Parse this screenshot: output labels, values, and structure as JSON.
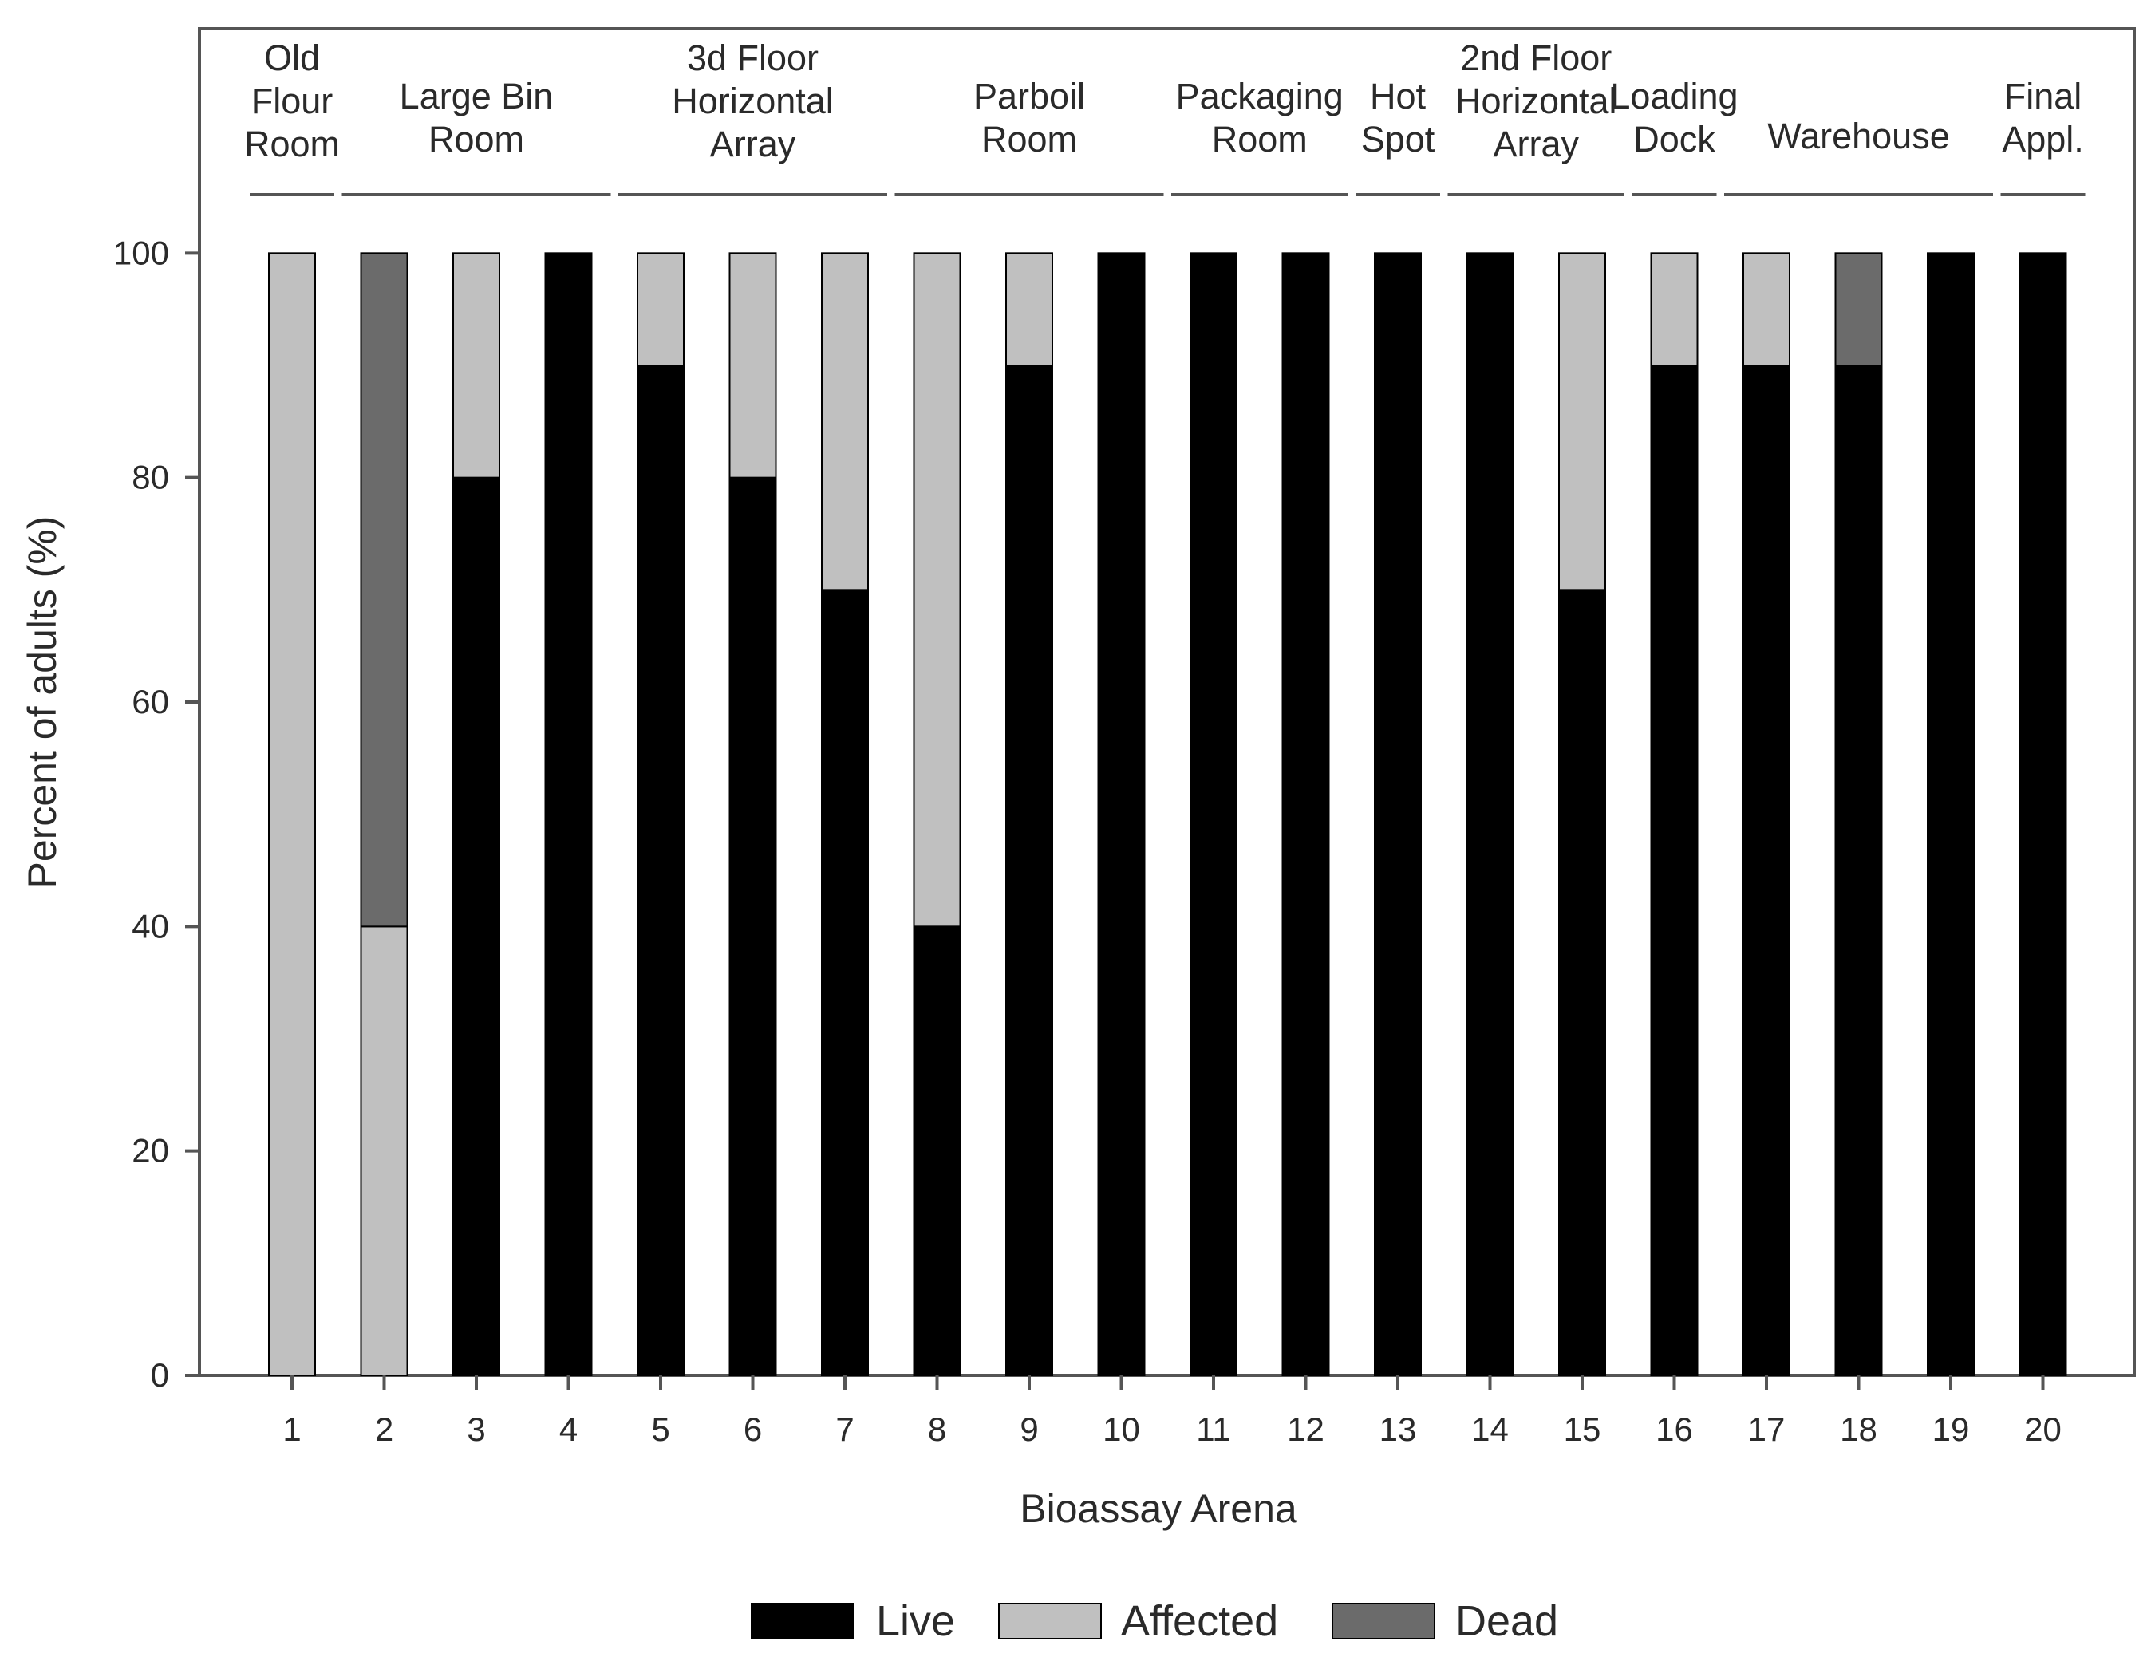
{
  "chart_data": {
    "type": "bar",
    "stacked": true,
    "xlabel": "Bioassay Arena",
    "ylabel": "Percent of adults (%)",
    "ylim": [
      0,
      120
    ],
    "yticks": [
      0,
      20,
      40,
      60,
      80,
      100
    ],
    "grid": false,
    "legend_position": "bottom",
    "categories": [
      "1",
      "2",
      "3",
      "4",
      "5",
      "6",
      "7",
      "8",
      "9",
      "10",
      "11",
      "12",
      "13",
      "14",
      "15",
      "16",
      "17",
      "18",
      "19",
      "20"
    ],
    "series": [
      {
        "name": "Live",
        "color": "#000000",
        "values": [
          0,
          0,
          80,
          100,
          90,
          80,
          70,
          40,
          90,
          100,
          100,
          100,
          100,
          100,
          70,
          90,
          90,
          90,
          100,
          100
        ]
      },
      {
        "name": "Affected",
        "color": "#c0c0c0",
        "values": [
          100,
          40,
          20,
          0,
          10,
          20,
          30,
          60,
          10,
          0,
          0,
          0,
          0,
          0,
          30,
          10,
          10,
          0,
          0,
          0
        ]
      },
      {
        "name": "Dead",
        "color": "#6b6b6b",
        "values": [
          0,
          60,
          0,
          0,
          0,
          0,
          0,
          0,
          0,
          0,
          0,
          0,
          0,
          0,
          0,
          0,
          0,
          10,
          0,
          0
        ]
      }
    ],
    "groups": [
      {
        "lines": [
          "Old",
          "Flour",
          "Room"
        ],
        "from": 1,
        "to": 1
      },
      {
        "lines": [
          "Large Bin",
          "Room"
        ],
        "from": 2,
        "to": 4
      },
      {
        "lines": [
          "3d Floor",
          "Horizontal",
          "Array"
        ],
        "from": 5,
        "to": 7
      },
      {
        "lines": [
          "Parboil",
          "Room"
        ],
        "from": 8,
        "to": 10
      },
      {
        "lines": [
          "Packaging",
          "Room"
        ],
        "from": 11,
        "to": 12
      },
      {
        "lines": [
          "Hot",
          "Spot"
        ],
        "from": 13,
        "to": 13
      },
      {
        "lines": [
          "2nd Floor",
          "Horizontal",
          "Array"
        ],
        "from": 14,
        "to": 15
      },
      {
        "lines": [
          "Loading",
          "Dock"
        ],
        "from": 16,
        "to": 16
      },
      {
        "lines": [
          "Warehouse"
        ],
        "from": 17,
        "to": 19
      },
      {
        "lines": [
          "Final",
          "Appl."
        ],
        "from": 20,
        "to": 20
      }
    ]
  }
}
